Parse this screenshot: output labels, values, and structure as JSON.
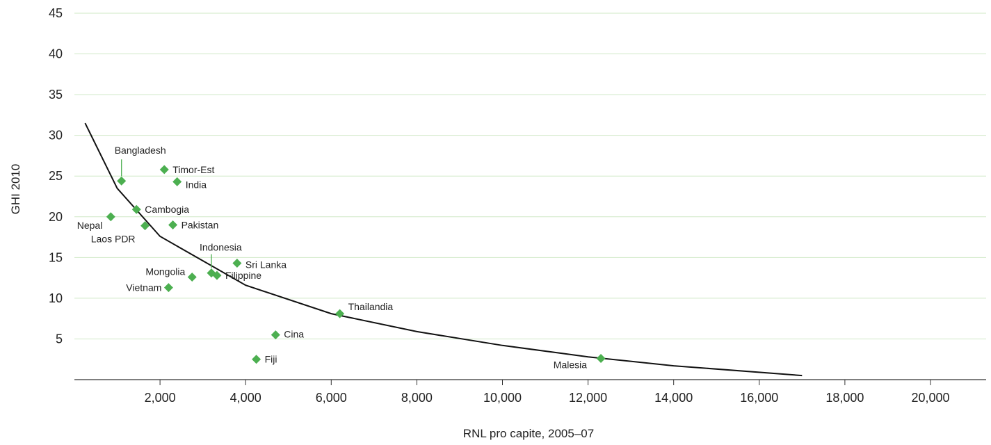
{
  "chart_data": {
    "type": "scatter",
    "title": "",
    "xlabel": "RNL pro capite, 2005–07",
    "ylabel": "GHI 2010",
    "xlim": [
      0,
      21300
    ],
    "ylim": [
      0,
      45
    ],
    "x_ticks": [
      2000,
      4000,
      6000,
      8000,
      10000,
      12000,
      14000,
      16000,
      18000,
      20000
    ],
    "x_tick_labels": [
      "2,000",
      "4,000",
      "6,000",
      "8,000",
      "10,000",
      "12,000",
      "14,000",
      "16,000",
      "18,000",
      "20,000"
    ],
    "y_ticks": [
      5,
      10,
      15,
      20,
      25,
      30,
      35,
      40,
      45
    ],
    "y_tick_labels": [
      "5",
      "10",
      "15",
      "20",
      "25",
      "30",
      "35",
      "40",
      "45"
    ],
    "grid": "horizontal",
    "marker_color": "#4caf50",
    "gridline_color": "#cfe8c6",
    "points": [
      {
        "name": "Bangladesh",
        "x": 1100,
        "y": 24.4
      },
      {
        "name": "Timor-Est",
        "x": 2100,
        "y": 25.8
      },
      {
        "name": "India",
        "x": 2400,
        "y": 24.3
      },
      {
        "name": "Cambogia",
        "x": 1450,
        "y": 20.9
      },
      {
        "name": "Nepal",
        "x": 850,
        "y": 20.0
      },
      {
        "name": "Laos PDR",
        "x": 1650,
        "y": 18.9
      },
      {
        "name": "Pakistan",
        "x": 2300,
        "y": 19.0
      },
      {
        "name": "Indonesia",
        "x": 3200,
        "y": 13.1
      },
      {
        "name": "Sri Lanka",
        "x": 3800,
        "y": 14.3
      },
      {
        "name": "Filippine",
        "x": 3330,
        "y": 12.8
      },
      {
        "name": "Mongolia",
        "x": 2750,
        "y": 12.6
      },
      {
        "name": "Vietnam",
        "x": 2200,
        "y": 11.3
      },
      {
        "name": "Thailandia",
        "x": 6200,
        "y": 8.1
      },
      {
        "name": "Cina",
        "x": 4700,
        "y": 5.5
      },
      {
        "name": "Fiji",
        "x": 4250,
        "y": 2.5
      },
      {
        "name": "Malesia",
        "x": 12300,
        "y": 2.6
      }
    ],
    "trend": {
      "type": "log",
      "points": [
        [
          250,
          31.5
        ],
        [
          1000,
          23.5
        ],
        [
          2000,
          17.6
        ],
        [
          4000,
          11.6
        ],
        [
          6000,
          8.1
        ],
        [
          8000,
          5.9
        ],
        [
          10000,
          4.2
        ],
        [
          12000,
          2.8
        ],
        [
          14000,
          1.7
        ],
        [
          17000,
          0.5
        ]
      ]
    }
  }
}
